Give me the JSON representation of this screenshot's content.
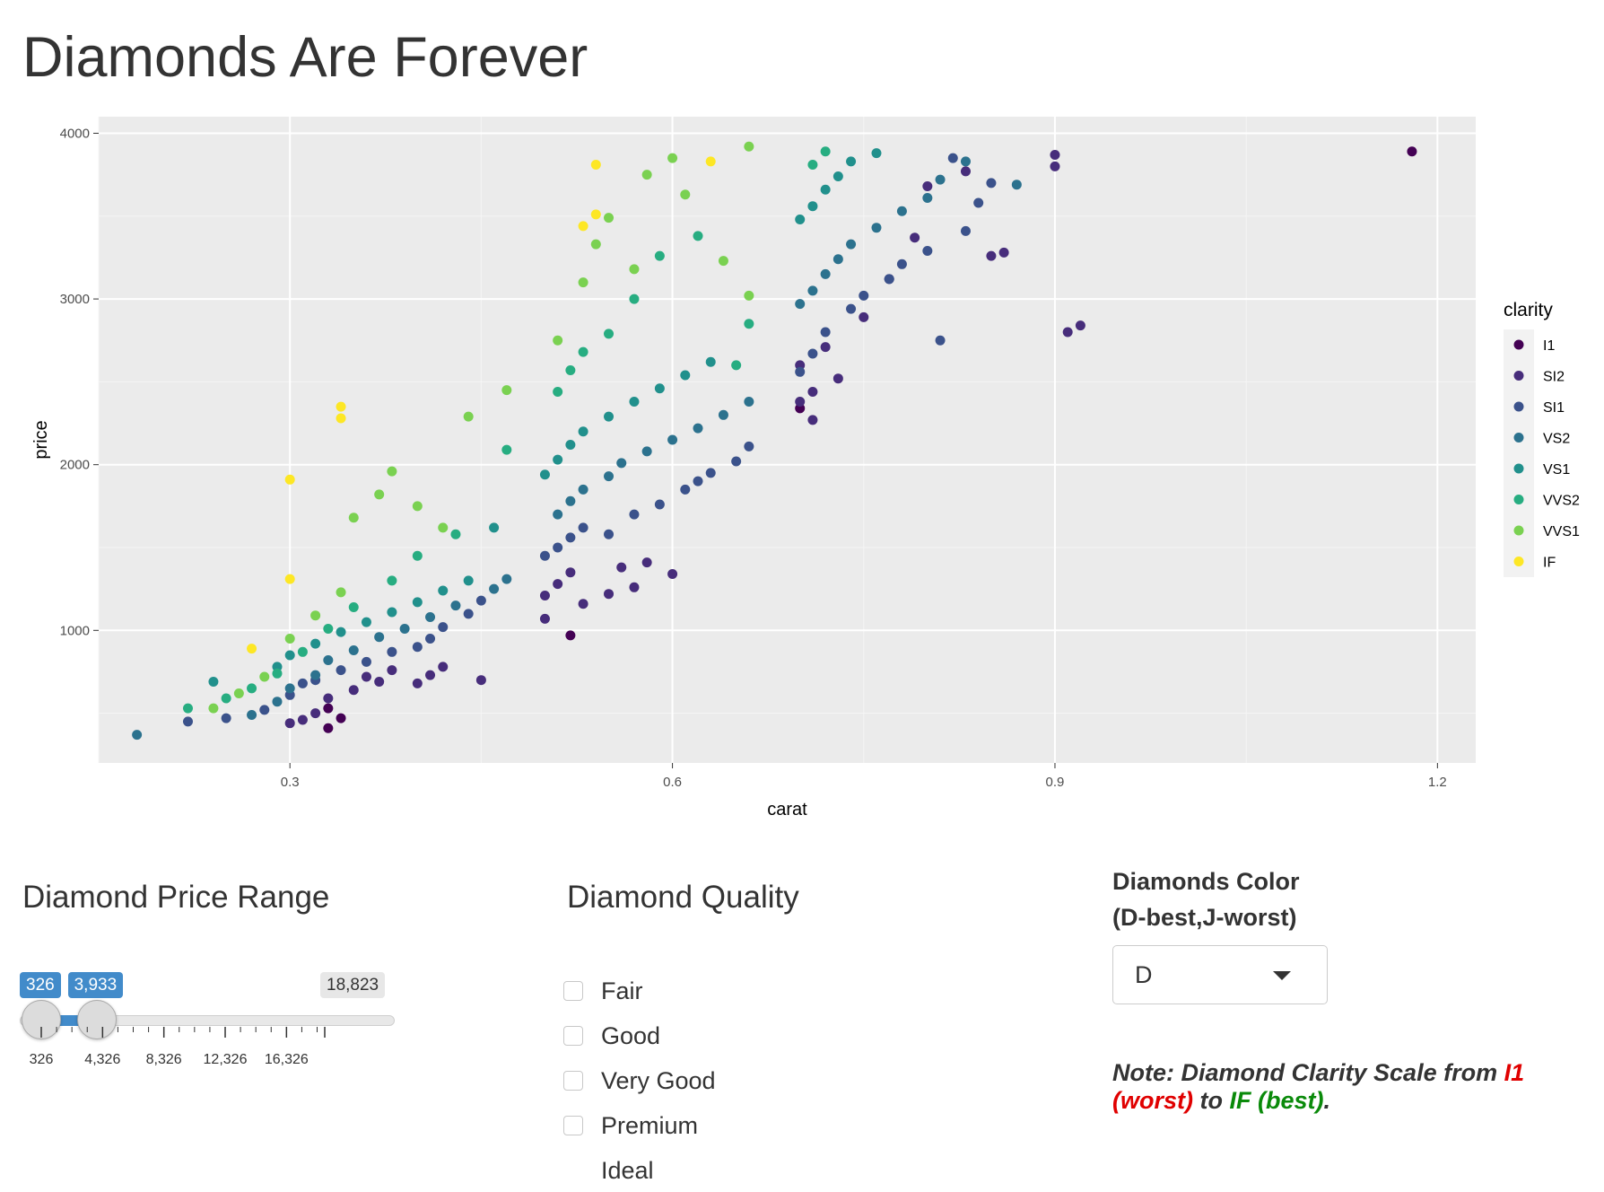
{
  "page": {
    "title": "Diamonds Are Forever"
  },
  "chart_data": {
    "type": "scatter",
    "xlabel": "carat",
    "ylabel": "price",
    "xlim": [
      0.15,
      1.23
    ],
    "ylim": [
      200,
      4100
    ],
    "x_ticks": [
      "0.3",
      "0.6",
      "0.9",
      "1.2"
    ],
    "y_ticks": [
      "1000",
      "2000",
      "3000",
      "4000"
    ],
    "grid": true,
    "legend": {
      "title": "clarity",
      "position": "right"
    },
    "series": [
      {
        "name": "I1",
        "color": "#440154",
        "points": [
          [
            0.33,
            410
          ],
          [
            0.33,
            530
          ],
          [
            0.34,
            470
          ],
          [
            0.52,
            970
          ],
          [
            0.7,
            2340
          ],
          [
            1.18,
            3890
          ]
        ]
      },
      {
        "name": "SI2",
        "color": "#472D7B",
        "points": [
          [
            0.3,
            440
          ],
          [
            0.31,
            460
          ],
          [
            0.32,
            500
          ],
          [
            0.33,
            590
          ],
          [
            0.35,
            640
          ],
          [
            0.36,
            720
          ],
          [
            0.37,
            690
          ],
          [
            0.38,
            760
          ],
          [
            0.4,
            680
          ],
          [
            0.41,
            730
          ],
          [
            0.42,
            780
          ],
          [
            0.45,
            700
          ],
          [
            0.5,
            1070
          ],
          [
            0.5,
            1210
          ],
          [
            0.51,
            1280
          ],
          [
            0.52,
            1350
          ],
          [
            0.53,
            1160
          ],
          [
            0.55,
            1220
          ],
          [
            0.56,
            1380
          ],
          [
            0.57,
            1260
          ],
          [
            0.58,
            1410
          ],
          [
            0.6,
            1340
          ],
          [
            0.7,
            2380
          ],
          [
            0.7,
            2600
          ],
          [
            0.71,
            2270
          ],
          [
            0.71,
            2440
          ],
          [
            0.72,
            2710
          ],
          [
            0.73,
            2520
          ],
          [
            0.75,
            2890
          ],
          [
            0.77,
            3120
          ],
          [
            0.79,
            3370
          ],
          [
            0.8,
            3680
          ],
          [
            0.83,
            3770
          ],
          [
            0.85,
            3260
          ],
          [
            0.86,
            3280
          ],
          [
            0.9,
            3800
          ],
          [
            0.9,
            3870
          ],
          [
            0.91,
            2800
          ],
          [
            0.92,
            2840
          ]
        ]
      },
      {
        "name": "SI1",
        "color": "#3B528B",
        "points": [
          [
            0.22,
            450
          ],
          [
            0.25,
            470
          ],
          [
            0.28,
            520
          ],
          [
            0.3,
            610
          ],
          [
            0.31,
            680
          ],
          [
            0.32,
            700
          ],
          [
            0.34,
            760
          ],
          [
            0.36,
            810
          ],
          [
            0.38,
            870
          ],
          [
            0.4,
            900
          ],
          [
            0.41,
            950
          ],
          [
            0.42,
            1020
          ],
          [
            0.44,
            1100
          ],
          [
            0.45,
            1180
          ],
          [
            0.5,
            1450
          ],
          [
            0.51,
            1500
          ],
          [
            0.52,
            1560
          ],
          [
            0.53,
            1620
          ],
          [
            0.55,
            1580
          ],
          [
            0.57,
            1700
          ],
          [
            0.59,
            1760
          ],
          [
            0.61,
            1850
          ],
          [
            0.62,
            1900
          ],
          [
            0.63,
            1950
          ],
          [
            0.65,
            2020
          ],
          [
            0.66,
            2110
          ],
          [
            0.7,
            2560
          ],
          [
            0.71,
            2670
          ],
          [
            0.72,
            2800
          ],
          [
            0.74,
            2940
          ],
          [
            0.75,
            3020
          ],
          [
            0.77,
            3120
          ],
          [
            0.78,
            3210
          ],
          [
            0.8,
            3290
          ],
          [
            0.81,
            2750
          ],
          [
            0.83,
            3410
          ],
          [
            0.84,
            3580
          ],
          [
            0.85,
            3700
          ],
          [
            0.82,
            3850
          ]
        ]
      },
      {
        "name": "VS2",
        "color": "#2C728E",
        "points": [
          [
            0.18,
            370
          ],
          [
            0.27,
            490
          ],
          [
            0.29,
            570
          ],
          [
            0.3,
            650
          ],
          [
            0.32,
            730
          ],
          [
            0.33,
            820
          ],
          [
            0.35,
            880
          ],
          [
            0.37,
            960
          ],
          [
            0.39,
            1010
          ],
          [
            0.41,
            1080
          ],
          [
            0.43,
            1150
          ],
          [
            0.46,
            1250
          ],
          [
            0.47,
            1310
          ],
          [
            0.51,
            1700
          ],
          [
            0.52,
            1780
          ],
          [
            0.53,
            1850
          ],
          [
            0.55,
            1930
          ],
          [
            0.56,
            2010
          ],
          [
            0.58,
            2080
          ],
          [
            0.6,
            2150
          ],
          [
            0.62,
            2220
          ],
          [
            0.64,
            2300
          ],
          [
            0.66,
            2380
          ],
          [
            0.7,
            2970
          ],
          [
            0.71,
            3050
          ],
          [
            0.72,
            3150
          ],
          [
            0.73,
            3240
          ],
          [
            0.74,
            3330
          ],
          [
            0.76,
            3430
          ],
          [
            0.78,
            3530
          ],
          [
            0.8,
            3610
          ],
          [
            0.81,
            3720
          ],
          [
            0.83,
            3830
          ],
          [
            0.87,
            3690
          ]
        ]
      },
      {
        "name": "VS1",
        "color": "#21908C",
        "points": [
          [
            0.24,
            690
          ],
          [
            0.29,
            780
          ],
          [
            0.3,
            850
          ],
          [
            0.32,
            920
          ],
          [
            0.34,
            990
          ],
          [
            0.36,
            1050
          ],
          [
            0.38,
            1110
          ],
          [
            0.4,
            1170
          ],
          [
            0.42,
            1240
          ],
          [
            0.44,
            1300
          ],
          [
            0.46,
            1620
          ],
          [
            0.5,
            1940
          ],
          [
            0.51,
            2030
          ],
          [
            0.52,
            2120
          ],
          [
            0.53,
            2200
          ],
          [
            0.55,
            2290
          ],
          [
            0.57,
            2380
          ],
          [
            0.59,
            2460
          ],
          [
            0.61,
            2540
          ],
          [
            0.63,
            2620
          ],
          [
            0.7,
            3480
          ],
          [
            0.71,
            3560
          ],
          [
            0.72,
            3660
          ],
          [
            0.73,
            3740
          ],
          [
            0.74,
            3830
          ],
          [
            0.76,
            3880
          ]
        ]
      },
      {
        "name": "VVS2",
        "color": "#27AD81",
        "points": [
          [
            0.22,
            530
          ],
          [
            0.25,
            590
          ],
          [
            0.27,
            650
          ],
          [
            0.29,
            740
          ],
          [
            0.31,
            870
          ],
          [
            0.33,
            1010
          ],
          [
            0.35,
            1140
          ],
          [
            0.38,
            1300
          ],
          [
            0.4,
            1450
          ],
          [
            0.43,
            1580
          ],
          [
            0.47,
            2090
          ],
          [
            0.51,
            2440
          ],
          [
            0.52,
            2570
          ],
          [
            0.53,
            2680
          ],
          [
            0.55,
            2790
          ],
          [
            0.57,
            3000
          ],
          [
            0.59,
            3260
          ],
          [
            0.62,
            3380
          ],
          [
            0.65,
            2600
          ],
          [
            0.66,
            2850
          ],
          [
            0.71,
            3810
          ],
          [
            0.72,
            3890
          ]
        ]
      },
      {
        "name": "VVS1",
        "color": "#7AD151",
        "points": [
          [
            0.24,
            530
          ],
          [
            0.26,
            620
          ],
          [
            0.28,
            720
          ],
          [
            0.3,
            950
          ],
          [
            0.32,
            1090
          ],
          [
            0.34,
            1230
          ],
          [
            0.35,
            1680
          ],
          [
            0.37,
            1820
          ],
          [
            0.38,
            1960
          ],
          [
            0.4,
            1750
          ],
          [
            0.42,
            1620
          ],
          [
            0.44,
            2290
          ],
          [
            0.47,
            2450
          ],
          [
            0.51,
            2750
          ],
          [
            0.53,
            3100
          ],
          [
            0.54,
            3330
          ],
          [
            0.55,
            3490
          ],
          [
            0.57,
            3180
          ],
          [
            0.58,
            3750
          ],
          [
            0.6,
            3850
          ],
          [
            0.61,
            3630
          ],
          [
            0.64,
            3230
          ],
          [
            0.66,
            3020
          ],
          [
            0.66,
            3920
          ]
        ]
      },
      {
        "name": "IF",
        "color": "#FDE725",
        "points": [
          [
            0.27,
            890
          ],
          [
            0.3,
            1310
          ],
          [
            0.3,
            1910
          ],
          [
            0.34,
            2350
          ],
          [
            0.34,
            2280
          ],
          [
            0.53,
            3440
          ],
          [
            0.54,
            3510
          ],
          [
            0.54,
            3810
          ],
          [
            0.63,
            3830
          ]
        ]
      }
    ]
  },
  "price_range": {
    "heading": "Diamond Price Range",
    "min": 326,
    "max": 18823,
    "from": 326,
    "to": 3933,
    "min_label": "326",
    "from_label": "326",
    "to_label": "3,933",
    "max_label": "18,823",
    "tick_labels": [
      "326",
      "4,326",
      "8,326",
      "12,326",
      "16,326"
    ]
  },
  "quality": {
    "heading": "Diamond Quality",
    "options": [
      "Fair",
      "Good",
      "Very Good",
      "Premium",
      "Ideal"
    ]
  },
  "color_select": {
    "heading_line1": "Diamonds Color",
    "heading_line2": "(D-best,J-worst)",
    "selected": "D"
  },
  "note": {
    "prefix": "Note: Diamond Clarity Scale from ",
    "worst_grade": "I1",
    "worst_text": "(worst)",
    "middle": " to ",
    "best_grade": "IF",
    "best_text": "(best)",
    "suffix": "."
  }
}
